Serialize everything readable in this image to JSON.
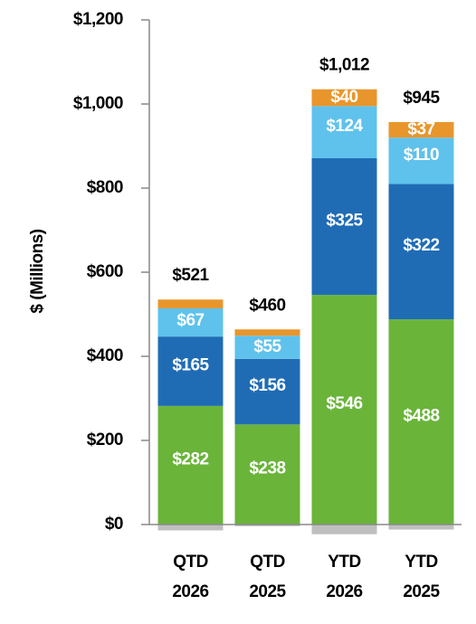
{
  "chart_data": {
    "type": "stacked-bar",
    "ylabel": "$ (Millions)",
    "categories": [
      [
        "QTD",
        "2026"
      ],
      [
        "QTD",
        "2025"
      ],
      [
        "YTD",
        "2026"
      ],
      [
        "YTD",
        "2025"
      ]
    ],
    "series": [
      {
        "color": "#6ab43a",
        "values": [
          282,
          238,
          546,
          488
        ],
        "value_labels": [
          "$282",
          "$238",
          "$546",
          "$488"
        ]
      },
      {
        "color": "#1f6cb5",
        "values": [
          165,
          156,
          325,
          322
        ],
        "value_labels": [
          "$165",
          "$156",
          "$325",
          "$322"
        ]
      },
      {
        "color": "#5ec2ec",
        "values": [
          67,
          55,
          124,
          110
        ],
        "value_labels": [
          "$67",
          "$55",
          "$124",
          "$110"
        ]
      },
      {
        "color": "#e8962c",
        "values": [
          21,
          15,
          40,
          37
        ],
        "value_labels": [
          null,
          null,
          "$40",
          "$37"
        ]
      },
      {
        "color": "#bfbfbf",
        "values": [
          -14,
          -4,
          -23,
          -12
        ],
        "value_labels": [
          null,
          null,
          null,
          null
        ]
      }
    ],
    "totals": {
      "values": [
        521,
        460,
        1012,
        945
      ],
      "value_labels": [
        "$521",
        "$460",
        "$1,012",
        "$945"
      ]
    },
    "ylim": [
      0,
      1200
    ],
    "yticks": [
      {
        "value": 0,
        "label": "$0"
      },
      {
        "value": 200,
        "label": "$200"
      },
      {
        "value": 400,
        "label": "$400"
      },
      {
        "value": 600,
        "label": "$600"
      },
      {
        "value": 800,
        "label": "$800"
      },
      {
        "value": 1000,
        "label": "$1,000"
      },
      {
        "value": 1200,
        "label": "$1,200"
      }
    ]
  }
}
